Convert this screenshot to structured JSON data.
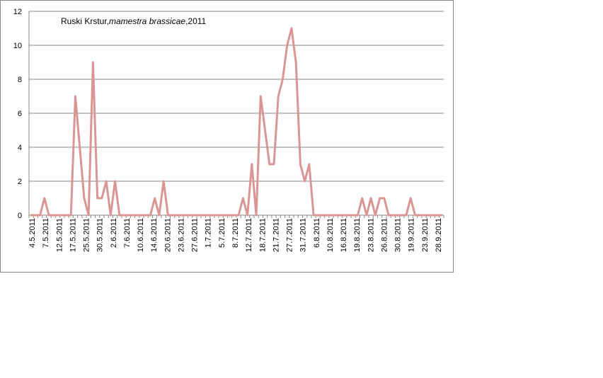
{
  "chart_data": {
    "type": "line",
    "title": "Ruski Krstur,",
    "title_species": "mamestra brassicae",
    "title_year": ",2011",
    "xlabel": "",
    "ylabel": "",
    "ylim": [
      0,
      12
    ],
    "y_ticks": [
      "0",
      "2",
      "4",
      "6",
      "8",
      "10",
      "12"
    ],
    "grid": true,
    "legend": "none",
    "line_color": "#D99694",
    "x_tick_labels": [
      "4.5.2011",
      "7.5.2011",
      "12.5.2011",
      "17.5.2011",
      "25.5.2011",
      "30.5.2011",
      "2.6.2011",
      "7.6.2011",
      "10.6.2011",
      "14.6.2011",
      "20.6.2011",
      "23.6.2011",
      "27.6.2011",
      "1.7.2011",
      "5.7.2011",
      "8.7.2011",
      "12.7.2011",
      "18.7.2011",
      "21.7.2011",
      "27.7.2011",
      "31.7.2011",
      "6.8.2011",
      "10.8.2011",
      "16.8.2011",
      "19.8.2011",
      "23.8.2011",
      "26.8.2011",
      "30.8.2011",
      "19.9.2011",
      "23.9.2011",
      "28.9.2011"
    ],
    "series": [
      {
        "values": [
          0,
          0,
          0,
          1,
          0,
          0,
          0,
          0,
          0,
          0,
          7,
          4,
          1,
          0,
          9,
          1,
          1,
          2,
          0,
          2,
          0,
          0,
          0,
          0,
          0,
          0,
          0,
          0,
          1,
          0,
          2,
          0,
          0,
          0,
          0,
          0,
          0,
          0,
          0,
          0,
          0,
          0,
          0,
          0,
          0,
          0,
          0,
          0,
          1,
          0,
          3,
          0,
          7,
          5,
          3,
          3,
          7,
          8,
          10,
          11,
          9,
          3,
          2,
          3,
          0,
          0,
          0,
          0,
          0,
          0,
          0,
          0,
          0,
          0,
          0,
          1,
          0,
          1,
          0,
          1,
          1,
          0,
          0,
          0,
          0,
          0,
          1,
          0,
          0,
          0,
          0,
          0,
          0,
          0
        ]
      }
    ]
  }
}
